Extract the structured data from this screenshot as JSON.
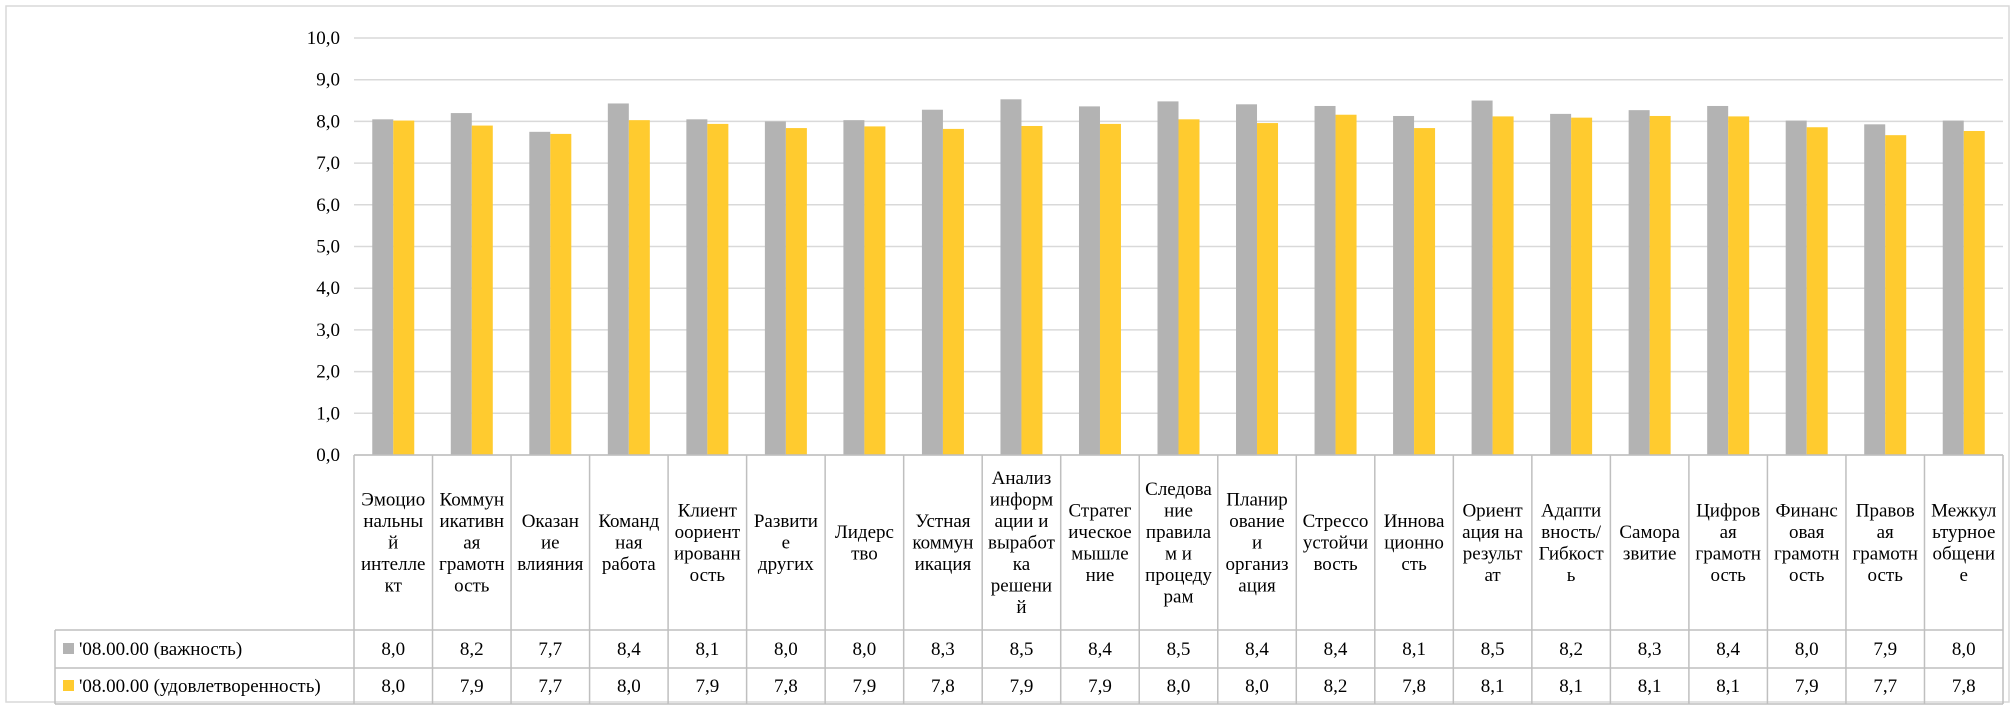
{
  "chart_data": {
    "type": "bar",
    "ylim": [
      0,
      10
    ],
    "yticks": [
      "0,0",
      "1,0",
      "2,0",
      "3,0",
      "4,0",
      "5,0",
      "6,0",
      "7,0",
      "8,0",
      "9,0",
      "10,0"
    ],
    "ytick_values": [
      0,
      1,
      2,
      3,
      4,
      5,
      6,
      7,
      8,
      9,
      10
    ],
    "grid": true,
    "legend_placement": "data-table-left",
    "categories": [
      "Эмоциональный интеллект",
      "Коммуникативная грамотность",
      "Оказание влияния",
      "Командная работа",
      "Клиентоориентированность",
      "Развитие других",
      "Лидерство",
      "Устная коммуникация",
      "Анализ информации и выработка решений",
      "Стратегическое мышление",
      "Следование правилам и процедурам",
      "Планирование и организация",
      "Стрессоустойчивость",
      "Инновационность",
      "Ориентация на результат",
      "Адаптивность/Гибкость",
      "Саморазвитие",
      "Цифровая грамотность",
      "Финансовая грамотность",
      "Правовая грамотность",
      "Межкультурное общение"
    ],
    "category_lines": [
      [
        "Эмоцио",
        "нальны",
        "й",
        "интелле",
        "кт"
      ],
      [
        "Коммун",
        "икативн",
        "ая",
        "грамотн",
        "ость"
      ],
      [
        "Оказан",
        "ие",
        "влияния"
      ],
      [
        "Команд",
        "ная",
        "работа"
      ],
      [
        "Клиент",
        "оориент",
        "ированн",
        "ость"
      ],
      [
        "Развити",
        "е",
        "других"
      ],
      [
        "Лидерс",
        "тво"
      ],
      [
        "Устная",
        "коммун",
        "икация"
      ],
      [
        "Анализ",
        "информ",
        "ации и",
        "выработ",
        "ка",
        "решени",
        "й"
      ],
      [
        "Стратег",
        "ическое",
        "мышле",
        "ние"
      ],
      [
        "Следова",
        "ние",
        "правила",
        "м и",
        "процеду",
        "рам"
      ],
      [
        "Планир",
        "ование",
        "и",
        "организ",
        "ация"
      ],
      [
        "Стрессо",
        "устойчи",
        "вость"
      ],
      [
        "Иннова",
        "ционно",
        "сть"
      ],
      [
        "Ориент",
        "ация на",
        "результ",
        "ат"
      ],
      [
        "Адапти",
        "вность/",
        "Гибкост",
        "ь"
      ],
      [
        "Самора",
        "звитие"
      ],
      [
        "Цифров",
        "ая",
        "грамотн",
        "ость"
      ],
      [
        "Финанс",
        "овая",
        "грамотн",
        "ость"
      ],
      [
        "Правов",
        "ая",
        "грамотн",
        "ость"
      ],
      [
        "Межкул",
        "ьтурное",
        "общени",
        "е"
      ]
    ],
    "series": [
      {
        "name": "'08.00.00 (важность)",
        "color": "#b3b3b3",
        "values": [
          8.05,
          8.2,
          7.75,
          8.43,
          8.05,
          8.0,
          8.03,
          8.28,
          8.53,
          8.36,
          8.48,
          8.41,
          8.37,
          8.13,
          8.5,
          8.18,
          8.27,
          8.37,
          8.02,
          7.93,
          8.02
        ],
        "labels": [
          "8,0",
          "8,2",
          "7,7",
          "8,4",
          "8,1",
          "8,0",
          "8,0",
          "8,3",
          "8,5",
          "8,4",
          "8,5",
          "8,4",
          "8,4",
          "8,1",
          "8,5",
          "8,2",
          "8,3",
          "8,4",
          "8,0",
          "7,9",
          "8,0"
        ]
      },
      {
        "name": "'08.00.00 (удовлетворенность)",
        "color": "#ffcb2f",
        "values": [
          8.02,
          7.9,
          7.7,
          8.03,
          7.94,
          7.84,
          7.88,
          7.82,
          7.89,
          7.94,
          8.05,
          7.96,
          8.16,
          7.84,
          8.12,
          8.09,
          8.13,
          8.12,
          7.86,
          7.67,
          7.77
        ],
        "labels": [
          "8,0",
          "7,9",
          "7,7",
          "8,0",
          "7,9",
          "7,8",
          "7,9",
          "7,8",
          "7,9",
          "7,9",
          "8,0",
          "8,0",
          "8,2",
          "7,8",
          "8,1",
          "8,1",
          "8,1",
          "8,1",
          "7,9",
          "7,7",
          "7,8"
        ]
      }
    ]
  }
}
